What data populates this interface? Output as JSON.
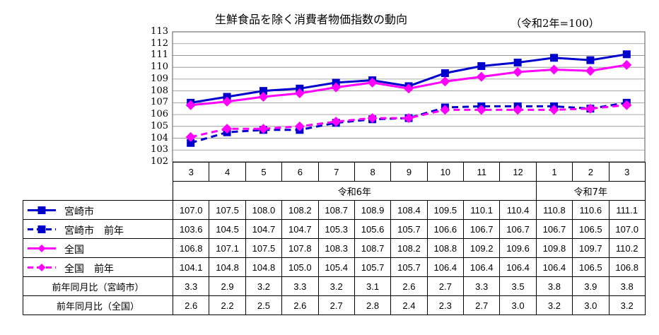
{
  "chart_data": {
    "type": "line",
    "title": "生鮮食品を除く消費者物価指数の動向",
    "subtitle": "（令和2年=100）",
    "categories": [
      "3",
      "4",
      "5",
      "6",
      "7",
      "8",
      "9",
      "10",
      "11",
      "12",
      "1",
      "2",
      "3"
    ],
    "era_labels": [
      "令和6年",
      "令和7年"
    ],
    "ylim": [
      102,
      113
    ],
    "yticks": [
      "102",
      "103",
      "104",
      "105",
      "106",
      "107",
      "108",
      "109",
      "110",
      "111",
      "112",
      "113"
    ],
    "grid": true,
    "series": [
      {
        "name": "宮崎市",
        "color": "#0000cc",
        "dashed": false,
        "marker": "square",
        "values": [
          107.0,
          107.5,
          108.0,
          108.2,
          108.7,
          108.9,
          108.4,
          109.5,
          110.1,
          110.4,
          110.8,
          110.6,
          111.1
        ],
        "labels": [
          "107.0",
          "107.5",
          "108.0",
          "108.2",
          "108.7",
          "108.9",
          "108.4",
          "109.5",
          "110.1",
          "110.4",
          "110.8",
          "110.6",
          "111.1"
        ]
      },
      {
        "name": "宮崎市　前年",
        "color": "#0000cc",
        "dashed": true,
        "marker": "square",
        "values": [
          103.6,
          104.5,
          104.7,
          104.7,
          105.3,
          105.6,
          105.7,
          106.6,
          106.7,
          106.7,
          106.7,
          106.5,
          107.0
        ],
        "labels": [
          "103.6",
          "104.5",
          "104.7",
          "104.7",
          "105.3",
          "105.6",
          "105.7",
          "106.6",
          "106.7",
          "106.7",
          "106.7",
          "106.5",
          "107.0"
        ]
      },
      {
        "name": "全国",
        "color": "#ff00ff",
        "dashed": false,
        "marker": "diamond",
        "values": [
          106.8,
          107.1,
          107.5,
          107.8,
          108.3,
          108.7,
          108.2,
          108.8,
          109.2,
          109.6,
          109.8,
          109.7,
          110.2
        ],
        "labels": [
          "106.8",
          "107.1",
          "107.5",
          "107.8",
          "108.3",
          "108.7",
          "108.2",
          "108.8",
          "109.2",
          "109.6",
          "109.8",
          "109.7",
          "110.2"
        ]
      },
      {
        "name": "全国　前年",
        "color": "#ff00ff",
        "dashed": true,
        "marker": "diamond",
        "values": [
          104.1,
          104.8,
          104.8,
          105.0,
          105.4,
          105.7,
          105.7,
          106.4,
          106.4,
          106.4,
          106.4,
          106.5,
          106.8
        ],
        "labels": [
          "104.1",
          "104.8",
          "104.8",
          "105.0",
          "105.4",
          "105.7",
          "105.7",
          "106.4",
          "106.4",
          "106.4",
          "106.4",
          "106.5",
          "106.8"
        ]
      }
    ],
    "extra_rows": [
      {
        "name": "前年同月比（宮崎市）",
        "labels": [
          "3.3",
          "2.9",
          "3.2",
          "3.3",
          "3.2",
          "3.1",
          "2.6",
          "2.7",
          "3.3",
          "3.5",
          "3.8",
          "3.9",
          "3.8"
        ]
      },
      {
        "name": "前年同月比（全国）",
        "labels": [
          "2.6",
          "2.2",
          "2.5",
          "2.6",
          "2.7",
          "2.8",
          "2.4",
          "2.3",
          "2.7",
          "3.0",
          "3.2",
          "3.0",
          "3.2"
        ]
      }
    ]
  }
}
